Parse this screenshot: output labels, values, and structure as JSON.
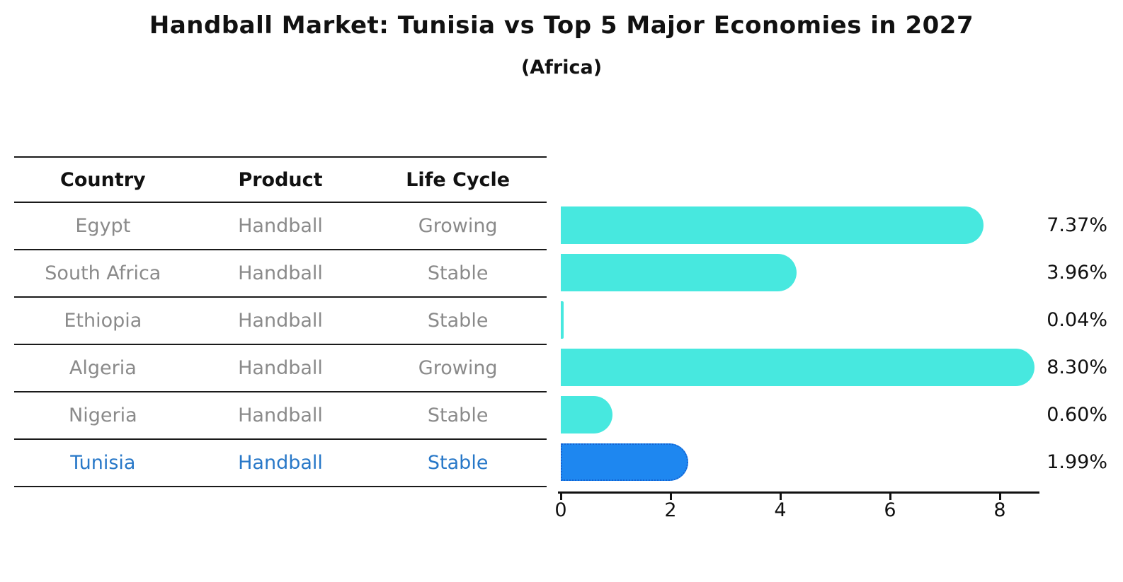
{
  "title": "Handball Market: Tunisia vs Top 5 Major Economies in 2027",
  "subtitle": "(Africa)",
  "table": {
    "headers": [
      "Country",
      "Product",
      "Life Cycle"
    ],
    "rows": [
      {
        "country": "Egypt",
        "product": "Handball",
        "life_cycle": "Growing",
        "highlighted": false
      },
      {
        "country": "South Africa",
        "product": "Handball",
        "life_cycle": "Stable",
        "highlighted": false
      },
      {
        "country": "Ethiopia",
        "product": "Handball",
        "life_cycle": "Stable",
        "highlighted": false
      },
      {
        "country": "Algeria",
        "product": "Handball",
        "life_cycle": "Growing",
        "highlighted": false
      },
      {
        "country": "Nigeria",
        "product": "Handball",
        "life_cycle": "Stable",
        "highlighted": false
      },
      {
        "country": "Tunisia",
        "product": "Handball",
        "life_cycle": "Stable",
        "highlighted": true
      }
    ]
  },
  "chart_data": {
    "type": "bar",
    "orientation": "horizontal",
    "title": "Handball Market: Tunisia vs Top 5 Major Economies in 2027",
    "subtitle": "(Africa)",
    "categories": [
      "Egypt",
      "South Africa",
      "Ethiopia",
      "Algeria",
      "Nigeria",
      "Tunisia"
    ],
    "values": [
      7.37,
      3.96,
      0.04,
      8.3,
      0.6,
      1.99
    ],
    "value_labels": [
      "7.37%",
      "3.96%",
      "0.04%",
      "8.30%",
      "0.60%",
      "1.99%"
    ],
    "x_ticks": [
      0,
      2,
      4,
      6,
      8
    ],
    "xlim": [
      0,
      8.72
    ],
    "grid": false,
    "legend": false,
    "bar_color": "#47e8df",
    "highlight_color": "#1e87f0",
    "highlight_border_color": "#1563d2",
    "highlight_index": 5,
    "highlight_text_color": "#2878c8",
    "xlabel": "",
    "ylabel": ""
  }
}
